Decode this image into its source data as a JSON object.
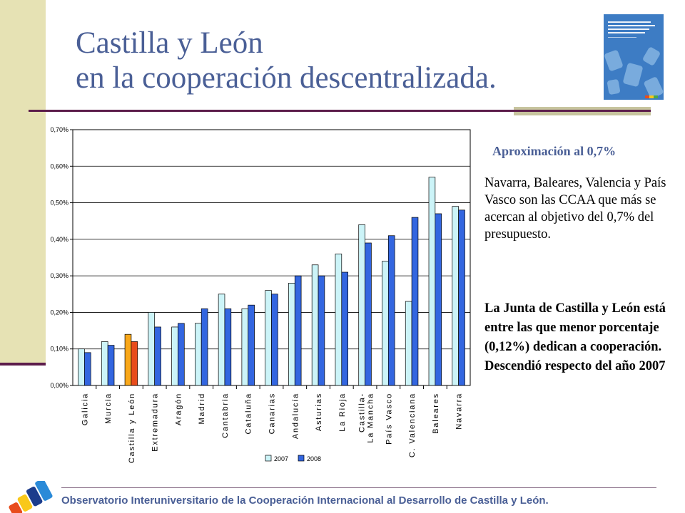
{
  "slide": {
    "title_line1": "Castilla y León",
    "title_line2": "en la cooperación descentralizada.",
    "side_heading": "Aproximación al 0,7%",
    "side_text": "Navarra, Baleares, Valencia y País Vasco son las CCAA que más se acercan al objetivo del 0,7% del presupuesto.",
    "side_bold_text": "La Junta de Castilla y León está entre las que menor porcentaje (0,12%) dedican a cooperación. Descendió respecto del año 2007",
    "footer": "Observatorio Interuniversitario de la Cooperación Internacional al Desarrollo de Castilla y León."
  },
  "colors": {
    "title": "#4a5f96",
    "series_2007": "#ccf4f8",
    "series_2008": "#3366e0",
    "highlight_2007": "#f9a81a",
    "highlight_2008": "#e84c1c"
  },
  "chart_data": {
    "type": "bar",
    "categories": [
      "Galicia",
      "Murcia",
      "Castilla y León",
      "Extremadura",
      "Aragón",
      "Madrid",
      "Cantabria",
      "Cataluña",
      "Canarias",
      "Andalucía",
      "Asturias",
      "La Rioja",
      "Castilla-La Mancha",
      "País Vasco",
      "C. Valenciana",
      "Baleares",
      "Navarra"
    ],
    "series": [
      {
        "name": "2007",
        "values": [
          0.1,
          0.12,
          0.14,
          0.2,
          0.16,
          0.17,
          0.25,
          0.21,
          0.26,
          0.28,
          0.33,
          0.36,
          0.44,
          0.34,
          0.23,
          0.57,
          0.49
        ]
      },
      {
        "name": "2008",
        "values": [
          0.09,
          0.11,
          0.12,
          0.16,
          0.17,
          0.21,
          0.21,
          0.22,
          0.25,
          0.3,
          0.3,
          0.31,
          0.39,
          0.41,
          0.46,
          0.47,
          0.48
        ]
      }
    ],
    "highlight_category": "Castilla y León",
    "yticks": [
      "0,00%",
      "0,10%",
      "0,20%",
      "0,30%",
      "0,40%",
      "0,50%",
      "0,60%",
      "0,70%"
    ],
    "ylim": [
      0,
      0.7
    ],
    "grid": true,
    "legend_position": "bottom"
  }
}
